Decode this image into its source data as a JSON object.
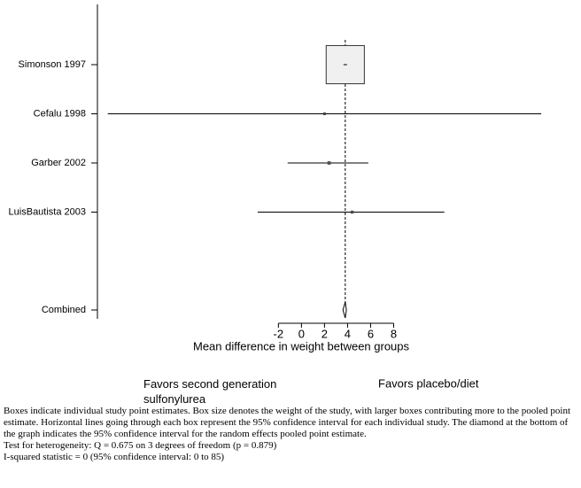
{
  "chart_data": {
    "type": "forest",
    "categories": [
      "Simonson 1997",
      "Cefalu 1998",
      "Garber 2002",
      "LuisBautista 2003"
    ],
    "values": [
      3.8,
      2.0,
      2.4,
      4.4
    ],
    "lower": [
      3.5,
      -16.8,
      -1.2,
      -3.8
    ],
    "upper": [
      4.1,
      20.8,
      5.8,
      12.4
    ],
    "weights": [
      96,
      0.3,
      0.5,
      0.4
    ],
    "combined": {
      "label": "Combined",
      "value": 3.8,
      "lower": 3.6,
      "upper": 3.9
    },
    "xlabel": "Mean difference in weight between groups",
    "xlim": [
      -17.7,
      23.1
    ],
    "xticks": [
      -2,
      0,
      2,
      4,
      6,
      8
    ],
    "left_label": "Favors second generation sulfonylurea",
    "right_label": "Favors placebo/diet",
    "color": "#000000"
  },
  "notes": [
    "Boxes indicate individual study point estimates. Box size denotes the weight of the study, with larger boxes contributing more to the pooled point estimate.  Horizontal lines going through each box represent the 95% confidence interval for each individual study.  The diamond at the bottom of the graph indicates the 95% confidence interval for the random effects pooled point estimate.",
    "Test for heterogeneity: Q = 0.675 on 3 degrees of freedom (p = 0.879)",
    "I-squared statistic = 0 (95% confidence interval: 0 to 85)"
  ]
}
